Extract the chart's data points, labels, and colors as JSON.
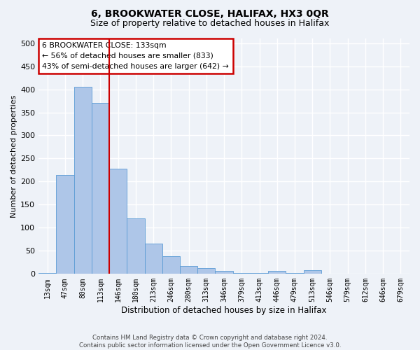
{
  "title1": "6, BROOKWATER CLOSE, HALIFAX, HX3 0QR",
  "title2": "Size of property relative to detached houses in Halifax",
  "xlabel": "Distribution of detached houses by size in Halifax",
  "ylabel": "Number of detached properties",
  "categories": [
    "13sqm",
    "47sqm",
    "80sqm",
    "113sqm",
    "146sqm",
    "180sqm",
    "213sqm",
    "246sqm",
    "280sqm",
    "313sqm",
    "346sqm",
    "379sqm",
    "413sqm",
    "446sqm",
    "479sqm",
    "513sqm",
    "546sqm",
    "579sqm",
    "612sqm",
    "646sqm",
    "679sqm"
  ],
  "values": [
    2,
    215,
    405,
    370,
    228,
    120,
    65,
    38,
    17,
    13,
    7,
    2,
    2,
    6,
    2,
    8,
    1,
    1,
    0,
    1,
    1
  ],
  "bar_color": "#aec6e8",
  "bar_edge_color": "#5b9bd5",
  "property_line_x": 3.5,
  "property_line_color": "#cc0000",
  "annotation_text": "6 BROOKWATER CLOSE: 133sqm\n← 56% of detached houses are smaller (833)\n43% of semi-detached houses are larger (642) →",
  "annotation_box_color": "#ffffff",
  "annotation_box_edge": "#cc0000",
  "ylim": [
    0,
    510
  ],
  "yticks": [
    0,
    50,
    100,
    150,
    200,
    250,
    300,
    350,
    400,
    450,
    500
  ],
  "footnote": "Contains HM Land Registry data © Crown copyright and database right 2024.\nContains public sector information licensed under the Open Government Licence v3.0.",
  "background_color": "#eef2f8",
  "axes_background": "#eef2f8",
  "grid_color": "#ffffff",
  "title1_fontsize": 10,
  "title2_fontsize": 9,
  "xlabel_fontsize": 8.5,
  "ylabel_fontsize": 8
}
